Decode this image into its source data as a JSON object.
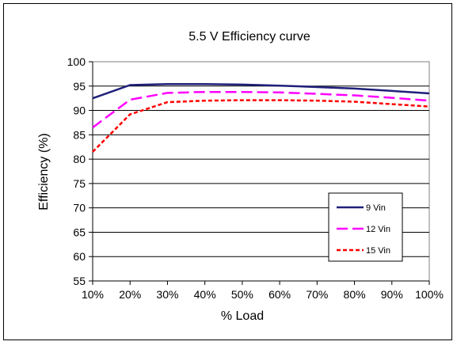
{
  "chart_data": {
    "type": "line",
    "title": "5.5 V Efficiency curve",
    "xlabel": "% Load",
    "ylabel": "Efficiency (%)",
    "categories": [
      "10%",
      "20%",
      "30%",
      "40%",
      "50%",
      "60%",
      "70%",
      "80%",
      "90%",
      "100%"
    ],
    "ylim": [
      55,
      100
    ],
    "yticks": [
      55,
      60,
      65,
      70,
      75,
      80,
      85,
      90,
      95,
      100
    ],
    "grid": true,
    "legend_position": "bottom-right",
    "series": [
      {
        "name": "9 Vin",
        "color": "#1f1f7a",
        "dash": "solid",
        "values": [
          92.5,
          95.2,
          95.4,
          95.4,
          95.3,
          95.1,
          94.8,
          94.5,
          94.0,
          93.5
        ]
      },
      {
        "name": "12 Vin",
        "color": "#ff00ff",
        "dash": "long-dash",
        "values": [
          86.5,
          92.2,
          93.6,
          93.8,
          93.8,
          93.7,
          93.4,
          93.1,
          92.6,
          92.0
        ]
      },
      {
        "name": "15 Vin",
        "color": "#ff0000",
        "dash": "short-dash",
        "values": [
          81.5,
          89.2,
          91.7,
          92.0,
          92.1,
          92.1,
          92.0,
          91.8,
          91.3,
          90.8
        ]
      }
    ]
  }
}
